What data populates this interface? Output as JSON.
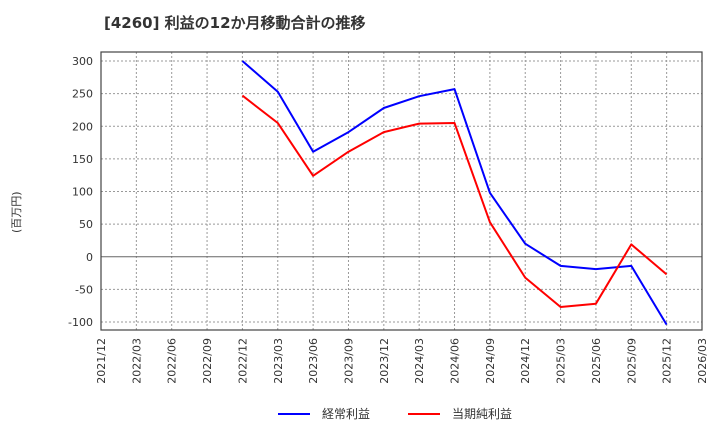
{
  "title": "[4260]  利益の12か月移動合計の推移",
  "y_axis_label": "(百万円)",
  "legend": [
    {
      "label": "経常利益",
      "color": "#0000ff"
    },
    {
      "label": "当期純利益",
      "color": "#ff0000"
    }
  ],
  "chart_data": {
    "type": "line",
    "title": "[4260]  利益の12か月移動合計の推移",
    "xlabel": "",
    "ylabel": "(百万円)",
    "ylim": [
      -100,
      300
    ],
    "yticks": [
      300,
      250,
      200,
      150,
      100,
      50,
      0,
      -50,
      -100
    ],
    "x_ticks": [
      "2021/12",
      "2022/03",
      "2022/06",
      "2022/09",
      "2022/12",
      "2023/03",
      "2023/06",
      "2023/09",
      "2023/12",
      "2024/03",
      "2024/06",
      "2024/09",
      "2024/12",
      "2025/03",
      "2025/06",
      "2025/09",
      "2025/12",
      "2026/03"
    ],
    "grid": true,
    "legend_position": "bottom",
    "x": [
      "2022/12",
      "2023/03",
      "2023/06",
      "2023/09",
      "2023/12",
      "2024/03",
      "2024/06",
      "2024/09",
      "2024/12",
      "2025/03",
      "2025/06",
      "2025/09",
      "2025/12"
    ],
    "series": [
      {
        "name": "経常利益",
        "color": "#0000ff",
        "values": [
          300,
          253,
          161,
          191,
          228,
          246,
          257,
          98,
          20,
          -14,
          -19,
          -14,
          -104
        ]
      },
      {
        "name": "当期純利益",
        "color": "#ff0000",
        "values": [
          247,
          205,
          124,
          161,
          191,
          204,
          205,
          53,
          -32,
          -77,
          -72,
          19,
          -27
        ]
      }
    ]
  }
}
